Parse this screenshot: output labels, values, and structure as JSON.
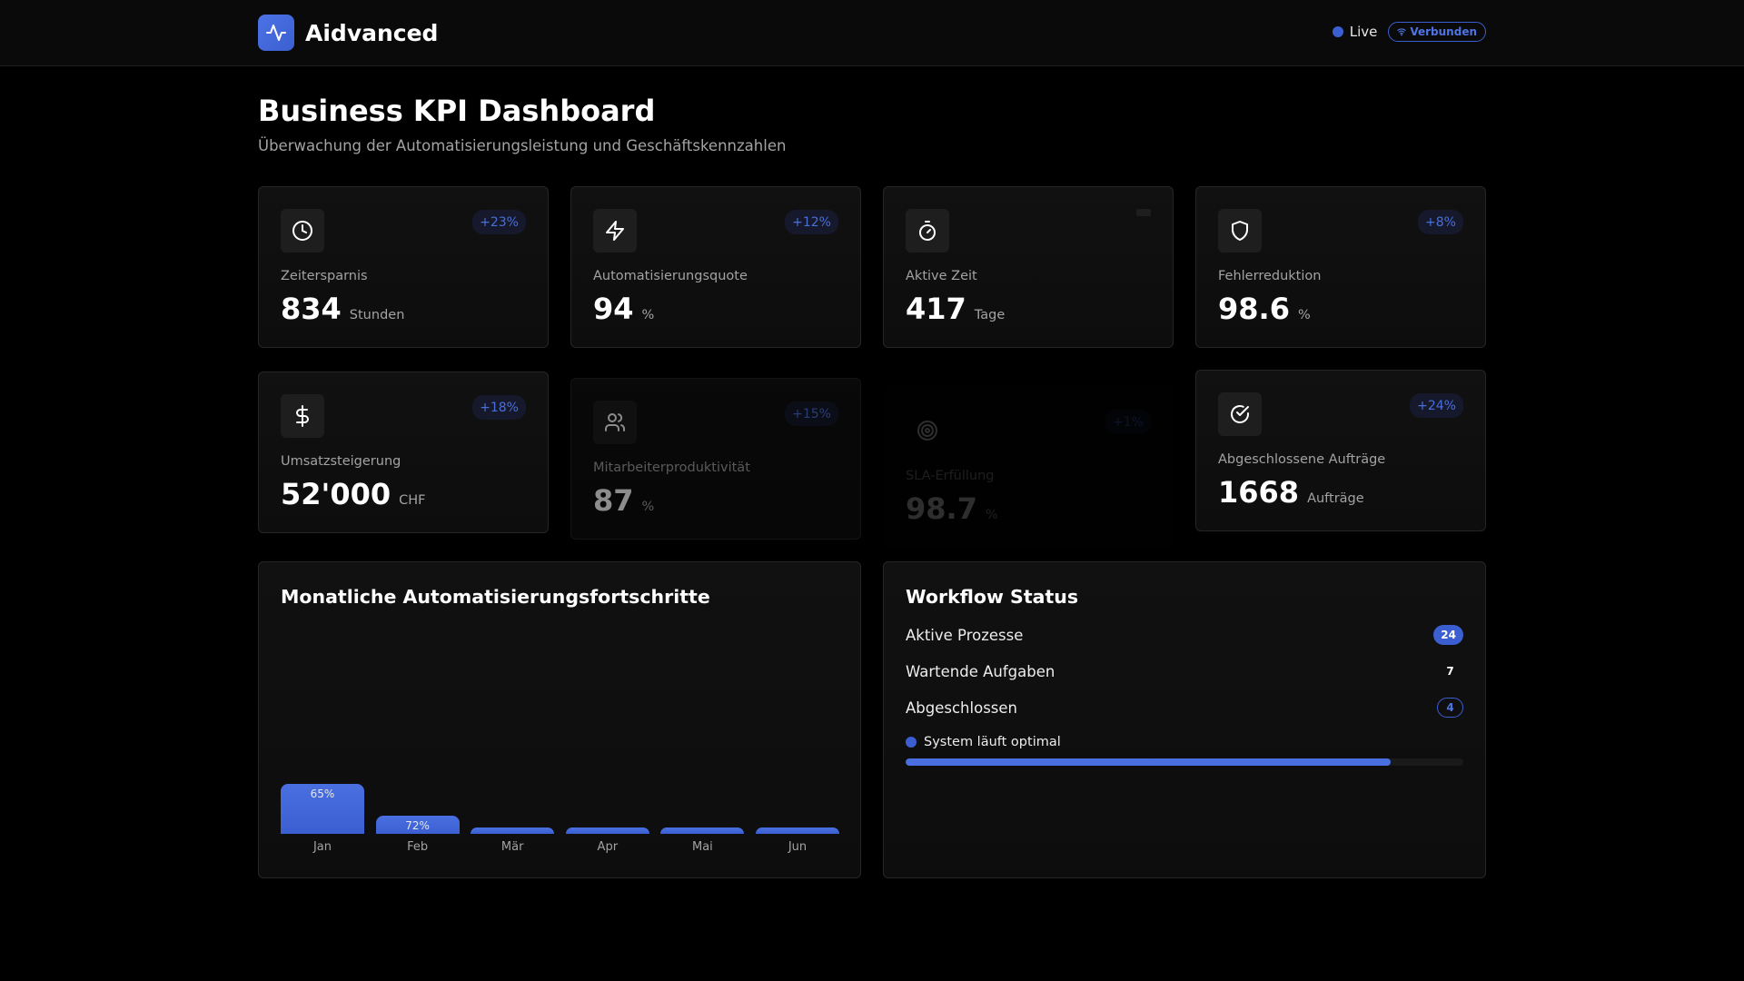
{
  "header": {
    "brand": "Aidvanced",
    "live_label": "Live",
    "connection_label": "Verbunden"
  },
  "page": {
    "title": "Business KPI Dashboard",
    "subtitle": "Überwachung der Automatisierungsleistung und Geschäftskennzahlen"
  },
  "kpis": [
    {
      "icon": "clock-icon",
      "trend": "+23%",
      "label": "Zeitersparnis",
      "value": "834",
      "unit": "Stunden"
    },
    {
      "icon": "lightning-icon",
      "trend": "+12%",
      "label": "Automatisierungsquote",
      "value": "94",
      "unit": "%"
    },
    {
      "icon": "stopwatch-icon",
      "trend": "",
      "label": "Aktive Zeit",
      "value": "417",
      "unit": "Tage"
    },
    {
      "icon": "shield-icon",
      "trend": "+8%",
      "label": "Fehlerreduktion",
      "value": "98.6",
      "unit": "%"
    },
    {
      "icon": "dollar-icon",
      "trend": "+18%",
      "label": "Umsatzsteigerung",
      "value": "52'000",
      "unit": "CHF"
    },
    {
      "icon": "users-icon",
      "trend": "+15%",
      "label": "Mitarbeiterproduktivität",
      "value": "87",
      "unit": "%"
    },
    {
      "icon": "target-icon",
      "trend": "+1%",
      "label": "SLA-Erfüllung",
      "value": "98.7",
      "unit": "%"
    },
    {
      "icon": "check-circle-icon",
      "trend": "+24%",
      "label": "Abgeschlossene Aufträge",
      "value": "1668",
      "unit": "Aufträge"
    }
  ],
  "progress_panel": {
    "title": "Monatliche Automatisierungsfortschritte"
  },
  "chart_data": {
    "type": "bar",
    "title": "Monatliche Automatisierungsfortschritte",
    "categories": [
      "Jan",
      "Feb",
      "Mär",
      "Apr",
      "Mai",
      "Jun"
    ],
    "values": [
      65,
      72,
      null,
      null,
      null,
      null
    ],
    "value_labels": [
      "65%",
      "72%",
      "",
      "",
      "",
      ""
    ],
    "visible_fill_fraction": [
      0.16,
      0.06,
      0.02,
      0.02,
      0.02,
      0.02
    ],
    "color": "#3b5fd0"
  },
  "workflow": {
    "title": "Workflow Status",
    "rows": [
      {
        "label": "Aktive Prozesse",
        "count": "24",
        "style": "solid"
      },
      {
        "label": "Wartende Aufgaben",
        "count": "7",
        "style": "plain"
      },
      {
        "label": "Abgeschlossen",
        "count": "4",
        "style": "outline"
      }
    ],
    "system_status": "System läuft optimal",
    "system_progress_fraction": 0.87
  },
  "colors": {
    "accent": "#3b5fd0",
    "background": "#000000",
    "card": "#111111",
    "muted_text": "#a3a3a3"
  }
}
